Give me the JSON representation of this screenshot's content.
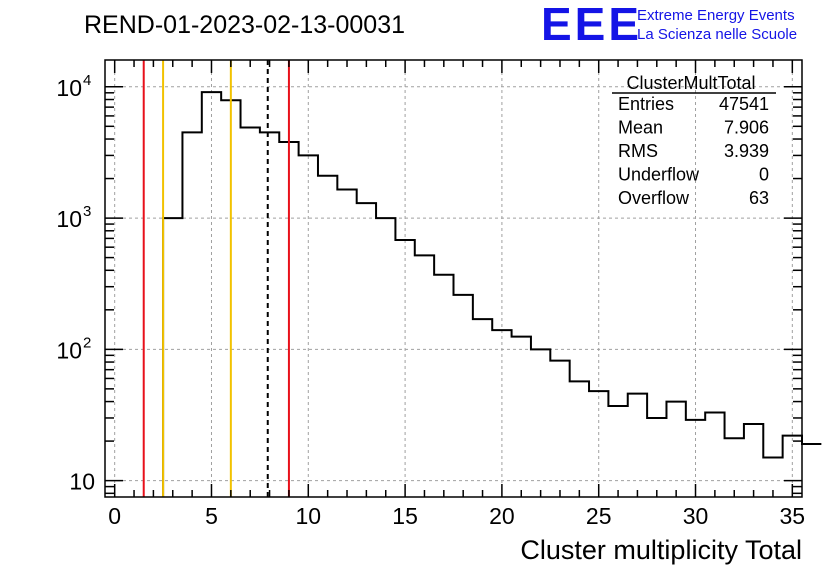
{
  "header": {
    "run_title": "REND-01-2023-02-13-00031",
    "logo_text": "EEE",
    "logo_line1": "Extreme Energy Events",
    "logo_line2": "La Scienza nelle Scuole"
  },
  "stats": {
    "title": "ClusterMultTotal",
    "rows": [
      {
        "label": "Entries",
        "value": "47541"
      },
      {
        "label": "Mean",
        "value": "7.906"
      },
      {
        "label": "RMS",
        "value": "3.939"
      },
      {
        "label": "Underflow",
        "value": "0"
      },
      {
        "label": "Overflow",
        "value": "63"
      }
    ]
  },
  "chart_data": {
    "type": "histogram",
    "xlabel": "Cluster multiplicity Total",
    "ylabel": "",
    "xlim": [
      -0.5,
      35.5
    ],
    "ylim": [
      7.5,
      16000
    ],
    "yscale": "log",
    "grid": true,
    "x_ticks": [
      0,
      5,
      10,
      15,
      20,
      25,
      30,
      35
    ],
    "y_ticks": [
      {
        "value": 10,
        "base": "10",
        "exp": ""
      },
      {
        "value": 100,
        "base": "10",
        "exp": "2"
      },
      {
        "value": 1000,
        "base": "10",
        "exp": "3"
      },
      {
        "value": 10000,
        "base": "10",
        "exp": "4"
      }
    ],
    "bin_width": 1,
    "bin_start": 2.5,
    "values": [
      1000,
      4500,
      9100,
      7900,
      4900,
      4500,
      3800,
      3000,
      2100,
      1650,
      1300,
      1000,
      680,
      520,
      370,
      260,
      170,
      140,
      125,
      100,
      82,
      57,
      48,
      37,
      46,
      30,
      40,
      29,
      33,
      21,
      27,
      15,
      22,
      19
    ],
    "vlines": [
      {
        "x": 1.5,
        "color": "#e8101a",
        "style": "solid"
      },
      {
        "x": 2.5,
        "color": "#f2c200",
        "style": "solid"
      },
      {
        "x": 6.0,
        "color": "#f2c200",
        "style": "solid"
      },
      {
        "x": 7.906,
        "color": "#000000",
        "style": "dashed"
      },
      {
        "x": 9.0,
        "color": "#e8101a",
        "style": "solid"
      }
    ],
    "colors": {
      "logo": "#1414e6",
      "line": "#000000",
      "grid": "#a0a0a0"
    }
  }
}
